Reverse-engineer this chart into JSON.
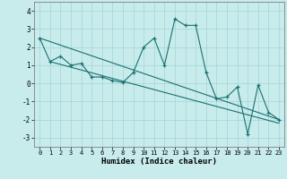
{
  "xlabel": "Humidex (Indice chaleur)",
  "ylabel": "",
  "background_color": "#c8ecec",
  "grid_color": "#aad8d8",
  "line_color": "#1a7070",
  "xlim": [
    -0.5,
    23.5
  ],
  "ylim": [
    -3.5,
    4.5
  ],
  "yticks": [
    -3,
    -2,
    -1,
    0,
    1,
    2,
    3,
    4
  ],
  "xticks": [
    0,
    1,
    2,
    3,
    4,
    5,
    6,
    7,
    8,
    9,
    10,
    11,
    12,
    13,
    14,
    15,
    16,
    17,
    18,
    19,
    20,
    21,
    22,
    23
  ],
  "series": [
    [
      0,
      2.5
    ],
    [
      1,
      1.2
    ],
    [
      2,
      1.5
    ],
    [
      3,
      1.0
    ],
    [
      4,
      1.1
    ],
    [
      5,
      0.35
    ],
    [
      6,
      0.35
    ],
    [
      7,
      0.15
    ],
    [
      8,
      0.05
    ],
    [
      9,
      0.6
    ],
    [
      10,
      2.0
    ],
    [
      11,
      2.5
    ],
    [
      12,
      1.0
    ],
    [
      13,
      3.55
    ],
    [
      14,
      3.2
    ],
    [
      15,
      3.2
    ],
    [
      16,
      0.6
    ],
    [
      17,
      -0.85
    ],
    [
      18,
      -0.75
    ],
    [
      19,
      -0.2
    ],
    [
      20,
      -2.8
    ],
    [
      21,
      -0.1
    ],
    [
      22,
      -1.6
    ],
    [
      23,
      -2.0
    ]
  ],
  "series2": [
    [
      0,
      2.5
    ],
    [
      23,
      -2.0
    ]
  ],
  "series3": [
    [
      1,
      1.2
    ],
    [
      23,
      -2.2
    ]
  ]
}
